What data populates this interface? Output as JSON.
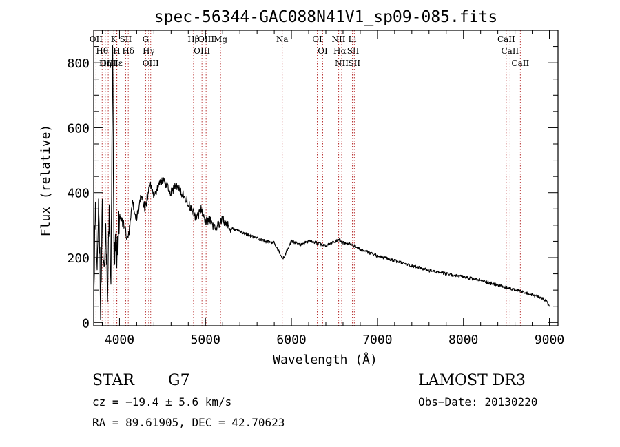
{
  "chart_data": {
    "type": "line",
    "title": "spec-56344-GAC088N41V1_sp09-085.fits",
    "xlabel": "Wavelength (Å)",
    "ylabel": "Flux (relative)",
    "xlim": [
      3700,
      9100
    ],
    "ylim": [
      -10,
      900
    ],
    "xticks": [
      4000,
      5000,
      6000,
      7000,
      8000,
      9000
    ],
    "xtick_labels": [
      "4000",
      "5000",
      "6000",
      "7000",
      "8000",
      "9000"
    ],
    "yticks": [
      0,
      200,
      400,
      600,
      800
    ],
    "ytick_labels": [
      "0",
      "200",
      "400",
      "600",
      "800"
    ],
    "grid": false,
    "series": [
      {
        "name": "flux",
        "color": "#000000",
        "x": [
          3700,
          3720,
          3740,
          3760,
          3780,
          3800,
          3820,
          3840,
          3860,
          3880,
          3900,
          3920,
          3935,
          3950,
          3970,
          4000,
          4050,
          4100,
          4150,
          4200,
          4250,
          4300,
          4350,
          4400,
          4450,
          4500,
          4550,
          4600,
          4650,
          4700,
          4750,
          4800,
          4850,
          4900,
          4950,
          5000,
          5050,
          5100,
          5150,
          5200,
          5250,
          5300,
          5400,
          5500,
          5600,
          5700,
          5800,
          5900,
          6000,
          6100,
          6200,
          6300,
          6400,
          6500,
          6560,
          6600,
          6700,
          6800,
          6900,
          7000,
          7200,
          7400,
          7600,
          7800,
          8000,
          8200,
          8400,
          8600,
          8800,
          8950,
          9000
        ],
        "values": [
          20,
          420,
          120,
          380,
          60,
          330,
          120,
          300,
          80,
          380,
          120,
          860,
          180,
          260,
          210,
          330,
          300,
          250,
          370,
          320,
          390,
          350,
          430,
          390,
          420,
          440,
          420,
          400,
          420,
          410,
          390,
          370,
          340,
          320,
          350,
          310,
          320,
          290,
          300,
          320,
          300,
          290,
          280,
          270,
          260,
          250,
          245,
          195,
          250,
          240,
          250,
          245,
          235,
          250,
          255,
          245,
          240,
          225,
          215,
          205,
          190,
          175,
          160,
          150,
          140,
          130,
          115,
          100,
          85,
          70,
          50
        ]
      }
    ],
    "line_markers": [
      {
        "name": "Hθ",
        "wavelength": 3798
      },
      {
        "name": "OII",
        "wavelength": 3727
      },
      {
        "name": "OIII",
        "wavelength": 3869
      },
      {
        "name": "K",
        "wavelength": 3934
      },
      {
        "name": "Hε",
        "wavelength": 3970
      },
      {
        "name": "Hη",
        "wavelength": 3835
      },
      {
        "name": "H",
        "wavelength": 3968
      },
      {
        "name": "SII",
        "wavelength": 4072
      },
      {
        "name": "Hδ",
        "wavelength": 4102
      },
      {
        "name": "OIII",
        "wavelength": 4363
      },
      {
        "name": "Hγ",
        "wavelength": 4340
      },
      {
        "name": "G",
        "wavelength": 4304
      },
      {
        "name": "OIII",
        "wavelength": 5007
      },
      {
        "name": "OIII",
        "wavelength": 4959
      },
      {
        "name": "Hβ",
        "wavelength": 4861
      },
      {
        "name": "Mg",
        "wavelength": 5175
      },
      {
        "name": "Na",
        "wavelength": 5893
      },
      {
        "name": "OI",
        "wavelength": 6300
      },
      {
        "name": "OI",
        "wavelength": 6364
      },
      {
        "name": "Hα",
        "wavelength": 6563
      },
      {
        "name": "NII",
        "wavelength": 6548
      },
      {
        "name": "NII",
        "wavelength": 6584
      },
      {
        "name": "SII",
        "wavelength": 6717
      },
      {
        "name": "Li",
        "wavelength": 6708
      },
      {
        "name": "SII",
        "wavelength": 6731
      },
      {
        "name": "CaII",
        "wavelength": 8542
      },
      {
        "name": "CaII",
        "wavelength": 8498
      },
      {
        "name": "CaII",
        "wavelength": 8662
      }
    ]
  },
  "info": {
    "object_class": "STAR",
    "subclass": "G7",
    "survey": "LAMOST DR3",
    "cz": "cz = −19.4 ± 5.6 km/s",
    "obs_date": "Obs−Date: 20130220",
    "radec": "RA =  89.61905, DEC =  42.70623"
  },
  "colors": {
    "axis": "#000000",
    "line_marker": "#b22222",
    "spectrum": "#000000",
    "background": "#ffffff"
  }
}
